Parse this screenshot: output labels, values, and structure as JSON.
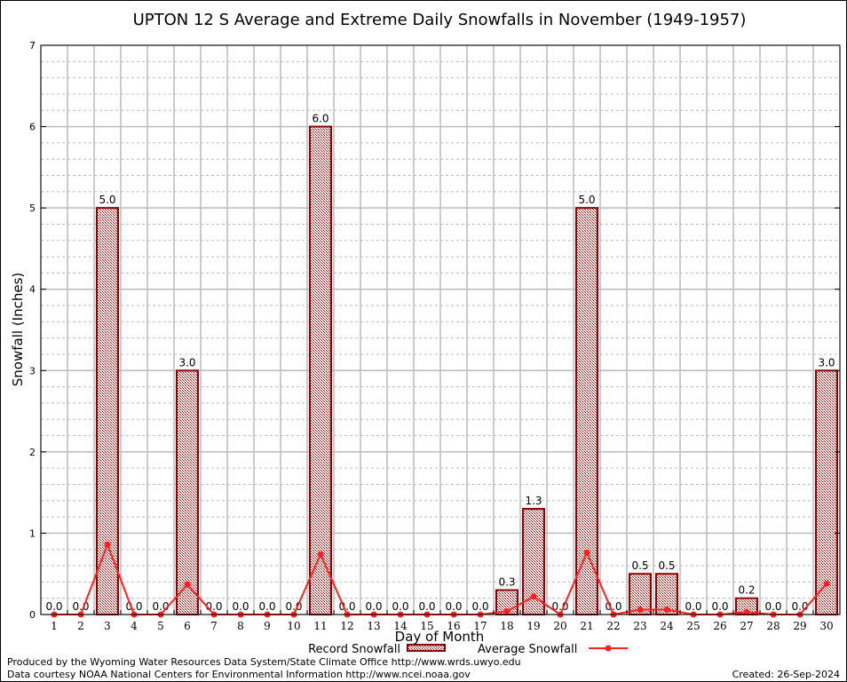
{
  "chart_data": {
    "type": "bar",
    "title": "UPTON 12 S Average and Extreme Daily Snowfalls in November (1949-1957)",
    "xlabel": "Day of Month",
    "ylabel": "Snowfall (Inches)",
    "ylim": [
      0,
      7
    ],
    "yticks": [
      "0",
      "1",
      "2",
      "3",
      "4",
      "5",
      "6",
      "7"
    ],
    "grid": true,
    "legend_placement": "bottom",
    "categories": [
      "1",
      "2",
      "3",
      "4",
      "5",
      "6",
      "7",
      "8",
      "9",
      "10",
      "11",
      "12",
      "13",
      "14",
      "15",
      "16",
      "17",
      "18",
      "19",
      "20",
      "21",
      "22",
      "23",
      "24",
      "25",
      "26",
      "27",
      "28",
      "29",
      "30"
    ],
    "series": [
      {
        "name": "Record Snowfall",
        "type": "bar",
        "color": "#8b0000",
        "values": [
          0,
          0,
          5.0,
          0,
          0,
          3.0,
          0,
          0,
          0,
          0,
          6.0,
          0,
          0,
          0,
          0,
          0,
          0,
          0.3,
          1.3,
          0,
          5.0,
          0,
          0.5,
          0.5,
          0,
          0,
          0.2,
          0,
          0,
          3.0
        ],
        "labels": [
          "0.0",
          "0.0",
          "5.0",
          "0.0",
          "0.0",
          "3.0",
          "0.0",
          "0.0",
          "0.0",
          "0.0",
          "6.0",
          "0.0",
          "0.0",
          "0.0",
          "0.0",
          "0.0",
          "0.0",
          "0.3",
          "1.3",
          "0.0",
          "5.0",
          "0.0",
          "0.5",
          "0.5",
          "0.0",
          "0.0",
          "0.2",
          "0.0",
          "0.0",
          "3.0"
        ]
      },
      {
        "name": "Average Snowfall",
        "type": "line",
        "color": "#ff2020",
        "values": [
          0,
          0,
          0.86,
          0,
          0,
          0.37,
          0,
          0,
          0,
          0,
          0.74,
          0,
          0,
          0,
          0,
          0,
          0,
          0.04,
          0.22,
          0,
          0.76,
          0,
          0.06,
          0.06,
          0,
          0,
          0.03,
          0,
          0,
          0.38
        ]
      }
    ]
  },
  "footer": {
    "produced": "Produced by the Wyoming Water Resources Data System/State Climate Office http://www.wrds.uwyo.edu",
    "courtesy": "Data courtesy NOAA National Centers for Environmental Information http://www.ncei.noaa.gov",
    "created": "Created: 26-Sep-2024"
  }
}
